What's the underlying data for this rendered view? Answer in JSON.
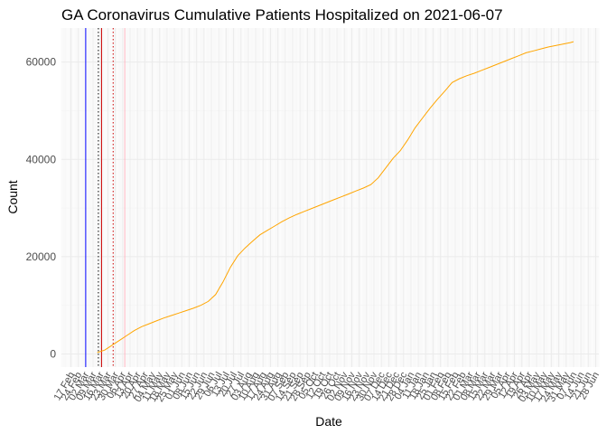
{
  "chart_data": {
    "type": "line",
    "title": "GA Coronavirus Cumulative Patients Hospitalized on 2021-06-07",
    "xlabel": "Date",
    "ylabel": "Count",
    "xlim": [
      "2020-02-08",
      "2021-07-01"
    ],
    "ylim": [
      -2700,
      67000
    ],
    "y_ticks": [
      0,
      20000,
      40000,
      60000
    ],
    "x_tick_labels": [
      "17 Feb",
      "24 Feb",
      "02 Mar",
      "09 Mar",
      "16 Mar",
      "23 Mar",
      "30 Mar",
      "06 Apr",
      "13 Apr",
      "20 Apr",
      "27 Apr",
      "04 May",
      "11 May",
      "18 May",
      "25 May",
      "01 Jun",
      "08 Jun",
      "15 Jun",
      "22 Jun",
      "29 Jun",
      "06 Jul",
      "13 Jul",
      "20 Jul",
      "27 Jul",
      "03 Aug",
      "10 Aug",
      "17 Aug",
      "24 Aug",
      "31 Aug",
      "07 Sep",
      "14 Sep",
      "21 Sep",
      "28 Sep",
      "05 Oct",
      "12 Oct",
      "19 Oct",
      "26 Oct",
      "02 Nov",
      "09 Nov",
      "16 Nov",
      "23 Nov",
      "30 Nov",
      "07 Dec",
      "14 Dec",
      "21 Dec",
      "28 Dec",
      "04 Jan",
      "11 Jan",
      "18 Jan",
      "25 Jan",
      "01 Feb",
      "08 Feb",
      "15 Feb",
      "22 Feb",
      "01 Mar",
      "08 Mar",
      "15 Mar",
      "22 Mar",
      "29 Mar",
      "05 Apr",
      "12 Apr",
      "19 Apr",
      "26 Apr",
      "03 May",
      "10 May",
      "17 May",
      "24 May",
      "31 May",
      "07 Jun",
      "14 Jun",
      "21 Jun",
      "28 Jun"
    ],
    "x_tick_start": "2020-02-17",
    "grid": true,
    "vlines": [
      {
        "date": "2020-03-02",
        "color": "#0000ff",
        "style": "solid"
      },
      {
        "date": "2020-03-14",
        "color": "#000000",
        "style": "dotted"
      },
      {
        "date": "2020-03-17",
        "color": "#cc0000",
        "style": "solid"
      },
      {
        "date": "2020-03-28",
        "color": "#cc0000",
        "style": "dotted"
      },
      {
        "date": "2020-04-08",
        "color": "#ffb6c1",
        "style": "solid"
      }
    ],
    "series": [
      {
        "color": "#ffa500",
        "x": [
          "2020-03-13",
          "2020-03-20",
          "2020-03-27",
          "2020-04-03",
          "2020-04-10",
          "2020-04-17",
          "2020-04-24",
          "2020-05-01",
          "2020-05-08",
          "2020-05-15",
          "2020-05-22",
          "2020-05-29",
          "2020-06-05",
          "2020-06-12",
          "2020-06-19",
          "2020-06-26",
          "2020-07-03",
          "2020-07-10",
          "2020-07-17",
          "2020-07-24",
          "2020-07-31",
          "2020-08-07",
          "2020-08-14",
          "2020-08-21",
          "2020-08-28",
          "2020-09-04",
          "2020-09-11",
          "2020-09-18",
          "2020-09-25",
          "2020-10-02",
          "2020-10-09",
          "2020-10-16",
          "2020-10-23",
          "2020-10-30",
          "2020-11-06",
          "2020-11-13",
          "2020-11-20",
          "2020-11-27",
          "2020-12-04",
          "2020-12-11",
          "2020-12-18",
          "2020-12-25",
          "2021-01-01",
          "2021-01-08",
          "2021-01-15",
          "2021-01-22",
          "2021-01-29",
          "2021-02-05",
          "2021-02-12",
          "2021-02-19",
          "2021-02-26",
          "2021-03-05",
          "2021-03-12",
          "2021-03-19",
          "2021-03-26",
          "2021-04-02",
          "2021-04-09",
          "2021-04-16",
          "2021-04-23",
          "2021-04-30",
          "2021-05-07",
          "2021-05-14",
          "2021-05-21",
          "2021-05-28",
          "2021-06-04",
          "2021-06-07"
        ],
        "values": [
          300,
          800,
          1800,
          2800,
          3800,
          4800,
          5600,
          6200,
          6800,
          7400,
          7900,
          8400,
          8900,
          9400,
          10000,
          10800,
          12200,
          14800,
          17800,
          20200,
          21800,
          23200,
          24500,
          25400,
          26300,
          27200,
          28000,
          28700,
          29300,
          29900,
          30500,
          31100,
          31700,
          32300,
          32900,
          33500,
          34100,
          34800,
          36200,
          38200,
          40200,
          41800,
          44000,
          46500,
          48500,
          50500,
          52300,
          54000,
          55800,
          56600,
          57200,
          57700,
          58300,
          58900,
          59500,
          60100,
          60700,
          61300,
          61900,
          62300,
          62700,
          63100,
          63400,
          63700,
          64000,
          64200
        ]
      }
    ]
  }
}
